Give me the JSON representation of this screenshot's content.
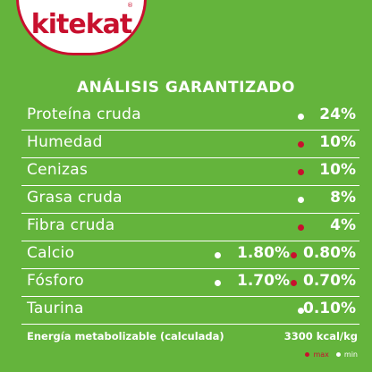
{
  "brand": {
    "name": "kitekat",
    "tm": "®",
    "red": "#c8102e"
  },
  "title": "ANÁLISIS GARANTIZADO",
  "colors": {
    "background": "#64b43c",
    "text": "#ffffff",
    "max_dot": "#c8102e",
    "min_dot": "#ffffff"
  },
  "rows": [
    {
      "label": "Proteína cruda",
      "value": "24%",
      "marker": "min"
    },
    {
      "label": "Humedad",
      "value": "10%",
      "marker": "max"
    },
    {
      "label": "Cenizas",
      "value": "10%",
      "marker": "max"
    },
    {
      "label": "Grasa cruda",
      "value": "8%",
      "marker": "min"
    },
    {
      "label": "Fibra cruda",
      "value": "4%",
      "marker": "max"
    },
    {
      "label": "Calcio",
      "min_value": "1.80%",
      "max_value": "0.80%"
    },
    {
      "label": "Fósforo",
      "min_value": "1.70%",
      "max_value": "0.70%"
    },
    {
      "label": "Taurina",
      "value": "0.10%",
      "marker": "min"
    }
  ],
  "energy": {
    "label": "Energía metabolizable (calculada)",
    "value": "3300 kcal/kg"
  },
  "legend": {
    "max": "max",
    "min": "min"
  }
}
